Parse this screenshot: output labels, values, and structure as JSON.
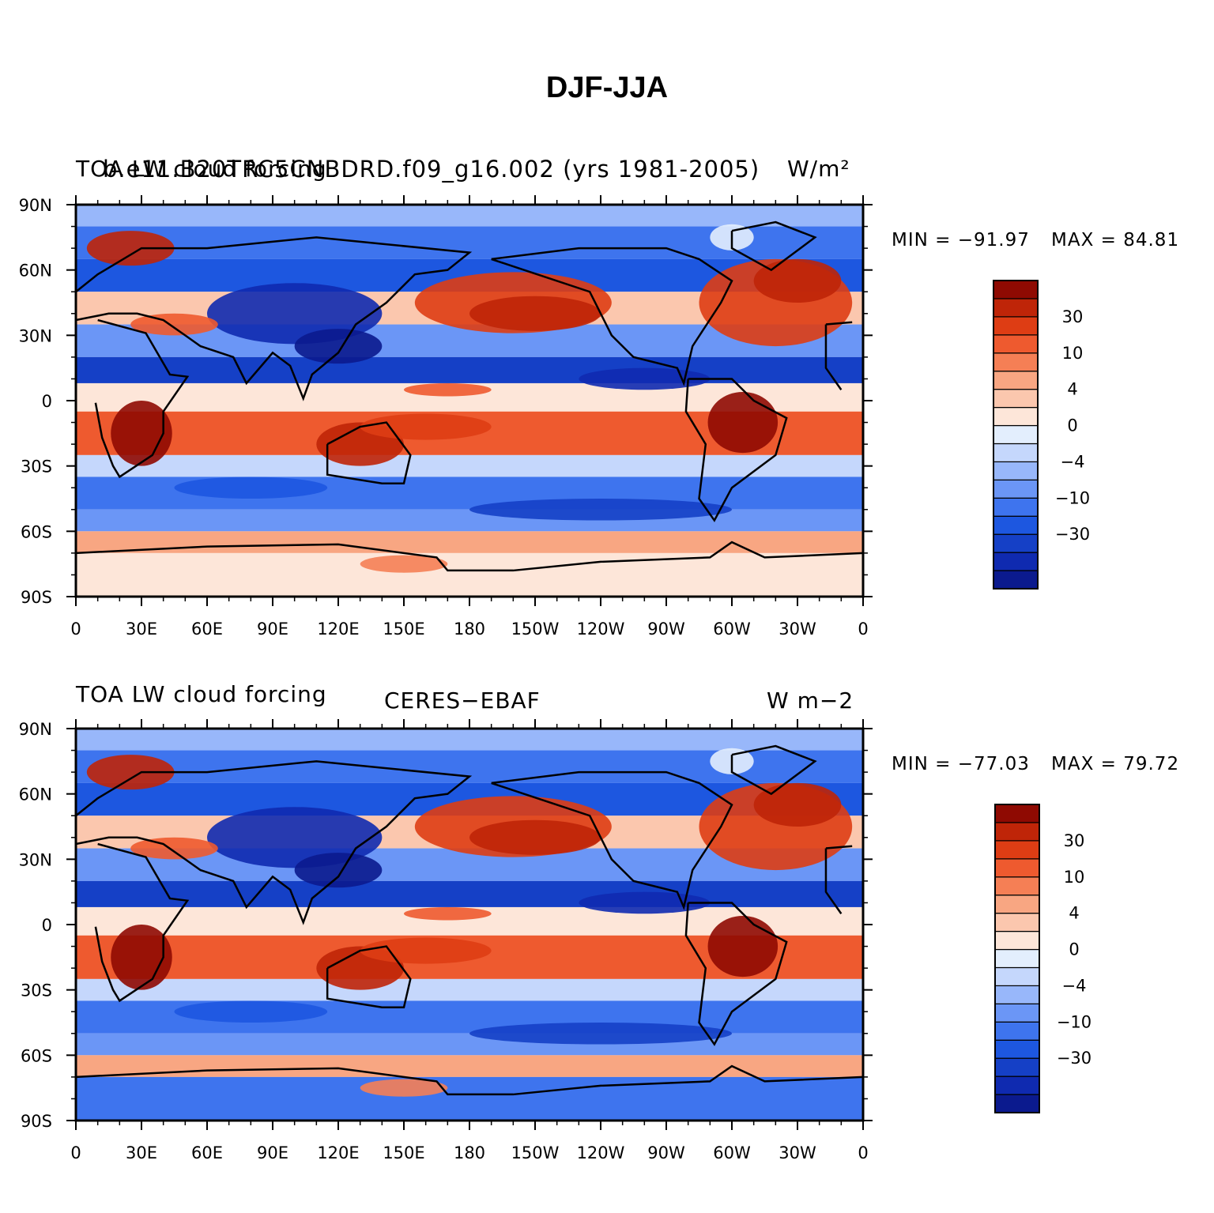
{
  "title": "DJF-JJA",
  "colorbar": {
    "colors": [
      "#0b1a8e",
      "#0f2ab0",
      "#1540c6",
      "#1d57e0",
      "#3e74ee",
      "#6b96f6",
      "#98b7fa",
      "#c5d7fc",
      "#e3eefd",
      "#fde6d9",
      "#fbc7ae",
      "#f8a682",
      "#f57f55",
      "#ee5a2f",
      "#de3d14",
      "#bf2508",
      "#8f0a02"
    ],
    "labels": [
      "30",
      "10",
      "4",
      "0",
      "−4",
      "−10",
      "−30"
    ]
  },
  "xticks": [
    "0",
    "30E",
    "60E",
    "90E",
    "120E",
    "150E",
    "180",
    "150W",
    "120W",
    "90W",
    "60W",
    "30W",
    "0"
  ],
  "yticks": [
    "90N",
    "60N",
    "30N",
    "0",
    "30S",
    "60S",
    "90S"
  ],
  "panels": [
    {
      "left_title": "TOA LW cloud forcing",
      "center_title": "b.e11.B20TRC5CNBDRD.f09_g16.002 (yrs 1981-2005)",
      "right_title": "W/m²",
      "min_label": "MIN = −91.97",
      "max_label": "MAX =  84.81"
    },
    {
      "left_title": "TOA LW cloud forcing",
      "center_title": "CERES−EBAF",
      "right_title": "W m−2",
      "min_label": "MIN = −77.03",
      "max_label": "MAX =  79.72"
    }
  ]
}
